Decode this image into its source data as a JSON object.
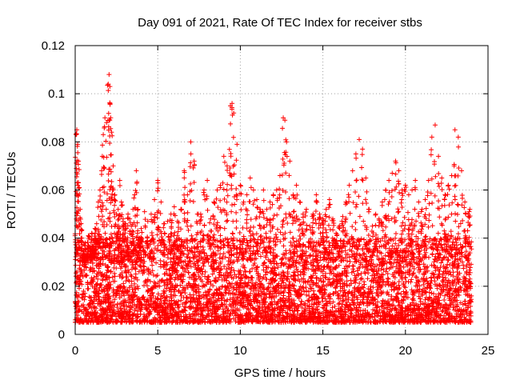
{
  "chart_data": {
    "type": "scatter",
    "title": "Day 091 of 2021, Rate Of TEC Index for receiver stbs",
    "xlabel": "GPS time / hours",
    "ylabel": "ROTI / TECUs",
    "xlim": [
      0,
      25
    ],
    "ylim": [
      0,
      0.12
    ],
    "xticks": [
      0,
      5,
      10,
      15,
      20,
      25
    ],
    "xtick_labels": [
      "0",
      "5",
      "10",
      "15",
      "20",
      "25"
    ],
    "yticks": [
      0,
      0.02,
      0.04,
      0.06,
      0.08,
      0.1,
      0.12
    ],
    "ytick_labels": [
      "0",
      "0.02",
      "0.04",
      "0.06",
      "0.08",
      "0.1",
      "0.12"
    ],
    "grid": true,
    "marker": "+",
    "color": "#ff0000",
    "series": [
      {
        "name": "ROTI",
        "x": [
          0.05,
          0.1,
          0.15,
          0.2,
          0.25,
          0.3,
          0.35,
          0.4,
          0.5,
          0.6,
          0.7,
          0.8,
          0.9,
          1.0,
          1.1,
          1.2,
          1.3,
          1.4,
          1.5,
          1.6,
          1.7,
          1.8,
          1.9,
          2.0,
          2.05,
          2.1,
          2.15,
          2.2,
          2.3,
          2.4,
          2.5,
          2.6,
          2.7,
          2.8,
          2.9,
          3.0,
          3.1,
          3.2,
          3.3,
          3.4,
          3.5,
          3.6,
          3.7,
          3.8,
          3.9,
          4.0,
          4.2,
          4.4,
          4.6,
          4.8,
          5.0,
          5.2,
          5.4,
          5.6,
          5.8,
          6.0,
          6.2,
          6.4,
          6.6,
          6.8,
          7.0,
          7.2,
          7.4,
          7.6,
          7.8,
          8.0,
          8.2,
          8.4,
          8.6,
          8.8,
          9.0,
          9.2,
          9.4,
          9.5,
          9.6,
          9.8,
          10.0,
          10.2,
          10.4,
          10.6,
          10.8,
          11.0,
          11.2,
          11.4,
          11.6,
          11.8,
          12.0,
          12.2,
          12.4,
          12.6,
          12.7,
          12.8,
          13.0,
          13.2,
          13.4,
          13.6,
          13.8,
          14.0,
          14.2,
          14.4,
          14.6,
          14.8,
          15.0,
          15.2,
          15.4,
          15.6,
          15.8,
          16.0,
          16.2,
          16.4,
          16.6,
          16.8,
          17.0,
          17.2,
          17.4,
          17.6,
          17.8,
          18.0,
          18.2,
          18.4,
          18.6,
          18.8,
          19.0,
          19.2,
          19.4,
          19.6,
          19.8,
          20.0,
          20.2,
          20.4,
          20.6,
          20.8,
          21.0,
          21.2,
          21.4,
          21.6,
          21.8,
          22.0,
          22.2,
          22.4,
          22.6,
          22.8,
          23.0,
          23.2,
          23.4,
          23.6,
          23.8,
          23.9
        ],
        "y": [
          0.083,
          0.085,
          0.079,
          0.072,
          0.061,
          0.052,
          0.046,
          0.04,
          0.035,
          0.038,
          0.033,
          0.041,
          0.036,
          0.042,
          0.039,
          0.044,
          0.046,
          0.055,
          0.06,
          0.068,
          0.083,
          0.09,
          0.088,
          0.104,
          0.108,
          0.103,
          0.09,
          0.084,
          0.07,
          0.058,
          0.05,
          0.052,
          0.064,
          0.055,
          0.048,
          0.046,
          0.044,
          0.05,
          0.048,
          0.045,
          0.052,
          0.058,
          0.068,
          0.052,
          0.04,
          0.044,
          0.051,
          0.047,
          0.05,
          0.056,
          0.064,
          0.055,
          0.046,
          0.047,
          0.05,
          0.053,
          0.047,
          0.052,
          0.068,
          0.058,
          0.08,
          0.072,
          0.05,
          0.05,
          0.06,
          0.064,
          0.048,
          0.055,
          0.06,
          0.062,
          0.074,
          0.07,
          0.095,
          0.096,
          0.092,
          0.079,
          0.062,
          0.055,
          0.058,
          0.065,
          0.06,
          0.056,
          0.052,
          0.06,
          0.052,
          0.055,
          0.058,
          0.06,
          0.066,
          0.09,
          0.089,
          0.08,
          0.072,
          0.058,
          0.062,
          0.055,
          0.05,
          0.052,
          0.045,
          0.05,
          0.058,
          0.05,
          0.048,
          0.052,
          0.056,
          0.048,
          0.042,
          0.045,
          0.049,
          0.055,
          0.062,
          0.068,
          0.075,
          0.081,
          0.077,
          0.065,
          0.052,
          0.045,
          0.05,
          0.048,
          0.055,
          0.06,
          0.064,
          0.067,
          0.072,
          0.068,
          0.06,
          0.062,
          0.058,
          0.06,
          0.064,
          0.055,
          0.052,
          0.056,
          0.064,
          0.082,
          0.087,
          0.074,
          0.065,
          0.058,
          0.062,
          0.066,
          0.085,
          0.082,
          0.068,
          0.055,
          0.05,
          0.052
        ]
      }
    ],
    "dense_band": {
      "description_hours": [
        0,
        24
      ],
      "baseline_range": [
        0.005,
        0.04
      ]
    }
  }
}
